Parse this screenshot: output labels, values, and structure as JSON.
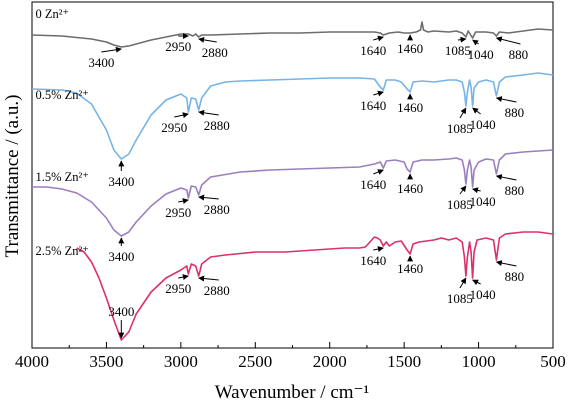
{
  "chart_data": {
    "type": "line",
    "xlabel": "Wavenumber / cm⁻¹",
    "ylabel": "Transmittance / (a.u.)",
    "xlim": [
      4000,
      500
    ],
    "x_reversed": true,
    "x_ticks": [
      "4000",
      "3500",
      "3000",
      "2500",
      "2000",
      "1500",
      "1000",
      "500"
    ],
    "y_ticks_shown": false,
    "grid": false,
    "legend": "none (series labelled inline above each curve)",
    "series": [
      {
        "name": "0 Zn²⁺",
        "color": "#6d6d6d",
        "label_x": 3990,
        "offset": 0,
        "points": [
          [
            4000,
            33
          ],
          [
            3800,
            34
          ],
          [
            3600,
            37
          ],
          [
            3500,
            40
          ],
          [
            3450,
            43
          ],
          [
            3400,
            45
          ],
          [
            3350,
            44
          ],
          [
            3300,
            42
          ],
          [
            3200,
            38
          ],
          [
            3100,
            35
          ],
          [
            3000,
            32
          ],
          [
            2950,
            32
          ],
          [
            2920,
            34
          ],
          [
            2900,
            32
          ],
          [
            2880,
            35
          ],
          [
            2860,
            33
          ],
          [
            2800,
            33
          ],
          [
            2600,
            32
          ],
          [
            2400,
            31
          ],
          [
            2200,
            31
          ],
          [
            2000,
            30
          ],
          [
            1800,
            30
          ],
          [
            1700,
            30
          ],
          [
            1660,
            31
          ],
          [
            1640,
            33
          ],
          [
            1600,
            31
          ],
          [
            1540,
            30
          ],
          [
            1500,
            31
          ],
          [
            1460,
            31
          ],
          [
            1420,
            30
          ],
          [
            1390,
            28
          ],
          [
            1380,
            20
          ],
          [
            1370,
            28
          ],
          [
            1340,
            30
          ],
          [
            1300,
            29
          ],
          [
            1200,
            30
          ],
          [
            1150,
            29
          ],
          [
            1110,
            31
          ],
          [
            1085,
            35
          ],
          [
            1070,
            29
          ],
          [
            1040,
            36
          ],
          [
            1020,
            30
          ],
          [
            1000,
            30
          ],
          [
            950,
            30
          ],
          [
            900,
            31
          ],
          [
            880,
            34
          ],
          [
            860,
            30
          ],
          [
            800,
            31
          ],
          [
            700,
            29
          ],
          [
            600,
            27
          ],
          [
            500,
            28
          ]
        ]
      },
      {
        "name": "0.5% Zn²⁺",
        "color": "#76b4e6",
        "label_x": 3990,
        "offset": 0,
        "points": [
          [
            4000,
            87
          ],
          [
            3800,
            88
          ],
          [
            3700,
            91
          ],
          [
            3600,
            102
          ],
          [
            3500,
            128
          ],
          [
            3450,
            148
          ],
          [
            3400,
            157
          ],
          [
            3350,
            152
          ],
          [
            3300,
            138
          ],
          [
            3200,
            113
          ],
          [
            3100,
            98
          ],
          [
            3000,
            92
          ],
          [
            2960,
            96
          ],
          [
            2950,
            110
          ],
          [
            2930,
            96
          ],
          [
            2900,
            97
          ],
          [
            2880,
            108
          ],
          [
            2860,
            96
          ],
          [
            2800,
            84
          ],
          [
            2700,
            80
          ],
          [
            2600,
            79
          ],
          [
            2400,
            78
          ],
          [
            2200,
            77
          ],
          [
            2000,
            76
          ],
          [
            1800,
            76
          ],
          [
            1700,
            77
          ],
          [
            1660,
            85
          ],
          [
            1640,
            88
          ],
          [
            1620,
            78
          ],
          [
            1560,
            78
          ],
          [
            1520,
            80
          ],
          [
            1480,
            87
          ],
          [
            1460,
            90
          ],
          [
            1440,
            80
          ],
          [
            1380,
            79
          ],
          [
            1300,
            80
          ],
          [
            1250,
            79
          ],
          [
            1200,
            78
          ],
          [
            1150,
            78
          ],
          [
            1110,
            80
          ],
          [
            1095,
            90
          ],
          [
            1085,
            104
          ],
          [
            1075,
            90
          ],
          [
            1060,
            78
          ],
          [
            1050,
            85
          ],
          [
            1040,
            104
          ],
          [
            1030,
            86
          ],
          [
            1000,
            80
          ],
          [
            950,
            78
          ],
          [
            900,
            80
          ],
          [
            880,
            94
          ],
          [
            860,
            80
          ],
          [
            820,
            75
          ],
          [
            700,
            73
          ],
          [
            600,
            71
          ],
          [
            500,
            73
          ]
        ]
      },
      {
        "name": "1.5% Zn²⁺",
        "color": "#9a7fc0",
        "label_x": 3990,
        "offset": 0,
        "points": [
          [
            4000,
            185
          ],
          [
            3900,
            185
          ],
          [
            3800,
            187
          ],
          [
            3700,
            191
          ],
          [
            3600,
            200
          ],
          [
            3500,
            216
          ],
          [
            3450,
            228
          ],
          [
            3400,
            234
          ],
          [
            3350,
            230
          ],
          [
            3300,
            220
          ],
          [
            3200,
            204
          ],
          [
            3100,
            192
          ],
          [
            3000,
            186
          ],
          [
            2960,
            188
          ],
          [
            2950,
            196
          ],
          [
            2930,
            184
          ],
          [
            2900,
            185
          ],
          [
            2880,
            193
          ],
          [
            2860,
            183
          ],
          [
            2800,
            175
          ],
          [
            2600,
            170
          ],
          [
            2400,
            168
          ],
          [
            2200,
            167
          ],
          [
            2000,
            166
          ],
          [
            1800,
            165
          ],
          [
            1700,
            162
          ],
          [
            1660,
            160
          ],
          [
            1640,
            166
          ],
          [
            1620,
            159
          ],
          [
            1560,
            158
          ],
          [
            1500,
            160
          ],
          [
            1480,
            167
          ],
          [
            1460,
            170
          ],
          [
            1440,
            160
          ],
          [
            1380,
            158
          ],
          [
            1300,
            158
          ],
          [
            1200,
            157
          ],
          [
            1150,
            156
          ],
          [
            1110,
            158
          ],
          [
            1095,
            168
          ],
          [
            1085,
            182
          ],
          [
            1075,
            168
          ],
          [
            1060,
            158
          ],
          [
            1050,
            165
          ],
          [
            1040,
            185
          ],
          [
            1030,
            168
          ],
          [
            1000,
            160
          ],
          [
            950,
            157
          ],
          [
            900,
            158
          ],
          [
            880,
            172
          ],
          [
            860,
            158
          ],
          [
            820,
            152
          ],
          [
            700,
            150
          ],
          [
            600,
            149
          ],
          [
            500,
            148
          ]
        ]
      },
      {
        "name": "2.5% Zn²⁺",
        "color": "#d93268",
        "label_x": 3990,
        "offset": 0,
        "points": [
          [
            3700,
            246
          ],
          [
            3650,
            250
          ],
          [
            3600,
            260
          ],
          [
            3550,
            276
          ],
          [
            3500,
            296
          ],
          [
            3450,
            318
          ],
          [
            3400,
            338
          ],
          [
            3350,
            330
          ],
          [
            3300,
            312
          ],
          [
            3200,
            290
          ],
          [
            3100,
            276
          ],
          [
            3000,
            268
          ],
          [
            2960,
            264
          ],
          [
            2950,
            272
          ],
          [
            2930,
            262
          ],
          [
            2900,
            264
          ],
          [
            2880,
            274
          ],
          [
            2860,
            262
          ],
          [
            2800,
            255
          ],
          [
            2700,
            253
          ],
          [
            2500,
            250
          ],
          [
            2300,
            250
          ],
          [
            2100,
            248
          ],
          [
            1900,
            246
          ],
          [
            1800,
            246
          ],
          [
            1760,
            245
          ],
          [
            1700,
            235
          ],
          [
            1680,
            236
          ],
          [
            1660,
            238
          ],
          [
            1640,
            244
          ],
          [
            1620,
            240
          ],
          [
            1600,
            244
          ],
          [
            1560,
            240
          ],
          [
            1520,
            239
          ],
          [
            1480,
            248
          ],
          [
            1460,
            252
          ],
          [
            1440,
            242
          ],
          [
            1400,
            240
          ],
          [
            1300,
            238
          ],
          [
            1250,
            236
          ],
          [
            1200,
            238
          ],
          [
            1150,
            236
          ],
          [
            1110,
            240
          ],
          [
            1095,
            255
          ],
          [
            1085,
            274
          ],
          [
            1075,
            255
          ],
          [
            1060,
            240
          ],
          [
            1050,
            250
          ],
          [
            1040,
            276
          ],
          [
            1030,
            250
          ],
          [
            1010,
            238
          ],
          [
            950,
            236
          ],
          [
            900,
            238
          ],
          [
            880,
            258
          ],
          [
            860,
            236
          ],
          [
            820,
            232
          ],
          [
            700,
            230
          ],
          [
            600,
            230
          ],
          [
            500,
            232
          ]
        ]
      }
    ],
    "annotations": [
      {
        "text": "3400",
        "series": 0
      },
      {
        "text": "2950",
        "series": 0
      },
      {
        "text": "2880",
        "series": 0
      },
      {
        "text": "1640",
        "series": 0
      },
      {
        "text": "1460",
        "series": 0
      },
      {
        "text": "1085",
        "series": 0
      },
      {
        "text": "1040",
        "series": 0
      },
      {
        "text": "880",
        "series": 0
      },
      {
        "text": "3400",
        "series": 1
      },
      {
        "text": "2950",
        "series": 1
      },
      {
        "text": "2880",
        "series": 1
      },
      {
        "text": "1640",
        "series": 1
      },
      {
        "text": "1460",
        "series": 1
      },
      {
        "text": "1085",
        "series": 1
      },
      {
        "text": "1040",
        "series": 1
      },
      {
        "text": "880",
        "series": 1
      },
      {
        "text": "3400",
        "series": 2
      },
      {
        "text": "2950",
        "series": 2
      },
      {
        "text": "2880",
        "series": 2
      },
      {
        "text": "1640",
        "series": 2
      },
      {
        "text": "1460",
        "series": 2
      },
      {
        "text": "1085",
        "series": 2
      },
      {
        "text": "1040",
        "series": 2
      },
      {
        "text": "880",
        "series": 2
      },
      {
        "text": "3400",
        "series": 3
      },
      {
        "text": "2950",
        "series": 3
      },
      {
        "text": "2880",
        "series": 3
      },
      {
        "text": "1640",
        "series": 3
      },
      {
        "text": "1460",
        "series": 3
      },
      {
        "text": "1085",
        "series": 3
      },
      {
        "text": "1040",
        "series": 3
      },
      {
        "text": "880",
        "series": 3
      }
    ]
  }
}
